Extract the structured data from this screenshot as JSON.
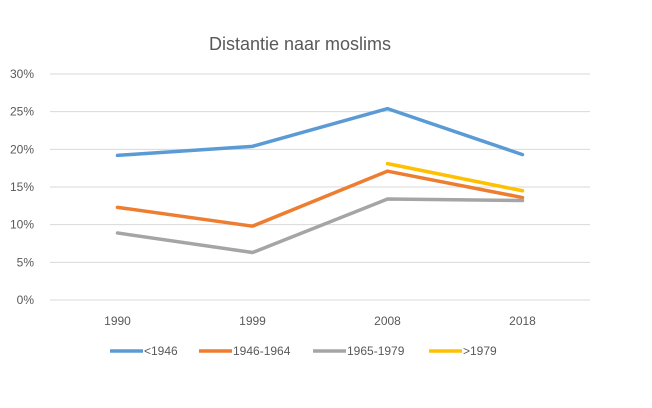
{
  "chart_data": {
    "type": "line",
    "title": "Distantie naar moslims",
    "xlabel": "",
    "ylabel": "",
    "categories": [
      "1990",
      "1999",
      "2008",
      "2018"
    ],
    "ylim": [
      0,
      30
    ],
    "yticks": [
      0,
      5,
      10,
      15,
      20,
      25,
      30
    ],
    "ytick_labels": [
      "0%",
      "5%",
      "10%",
      "15%",
      "20%",
      "25%",
      "30%"
    ],
    "grid": true,
    "legend_position": "bottom",
    "series": [
      {
        "name": "<1946",
        "color": "#5B9BD5",
        "values": [
          19.2,
          20.4,
          25.4,
          19.3
        ]
      },
      {
        "name": "1946-1964",
        "color": "#ED7D31",
        "values": [
          12.3,
          9.8,
          17.1,
          13.6
        ]
      },
      {
        "name": "1965-1979",
        "color": "#A5A5A5",
        "values": [
          8.9,
          6.3,
          13.4,
          13.2
        ]
      },
      {
        "name": ">1979",
        "color": "#FFC000",
        "values": [
          null,
          null,
          18.1,
          14.5
        ]
      }
    ]
  }
}
